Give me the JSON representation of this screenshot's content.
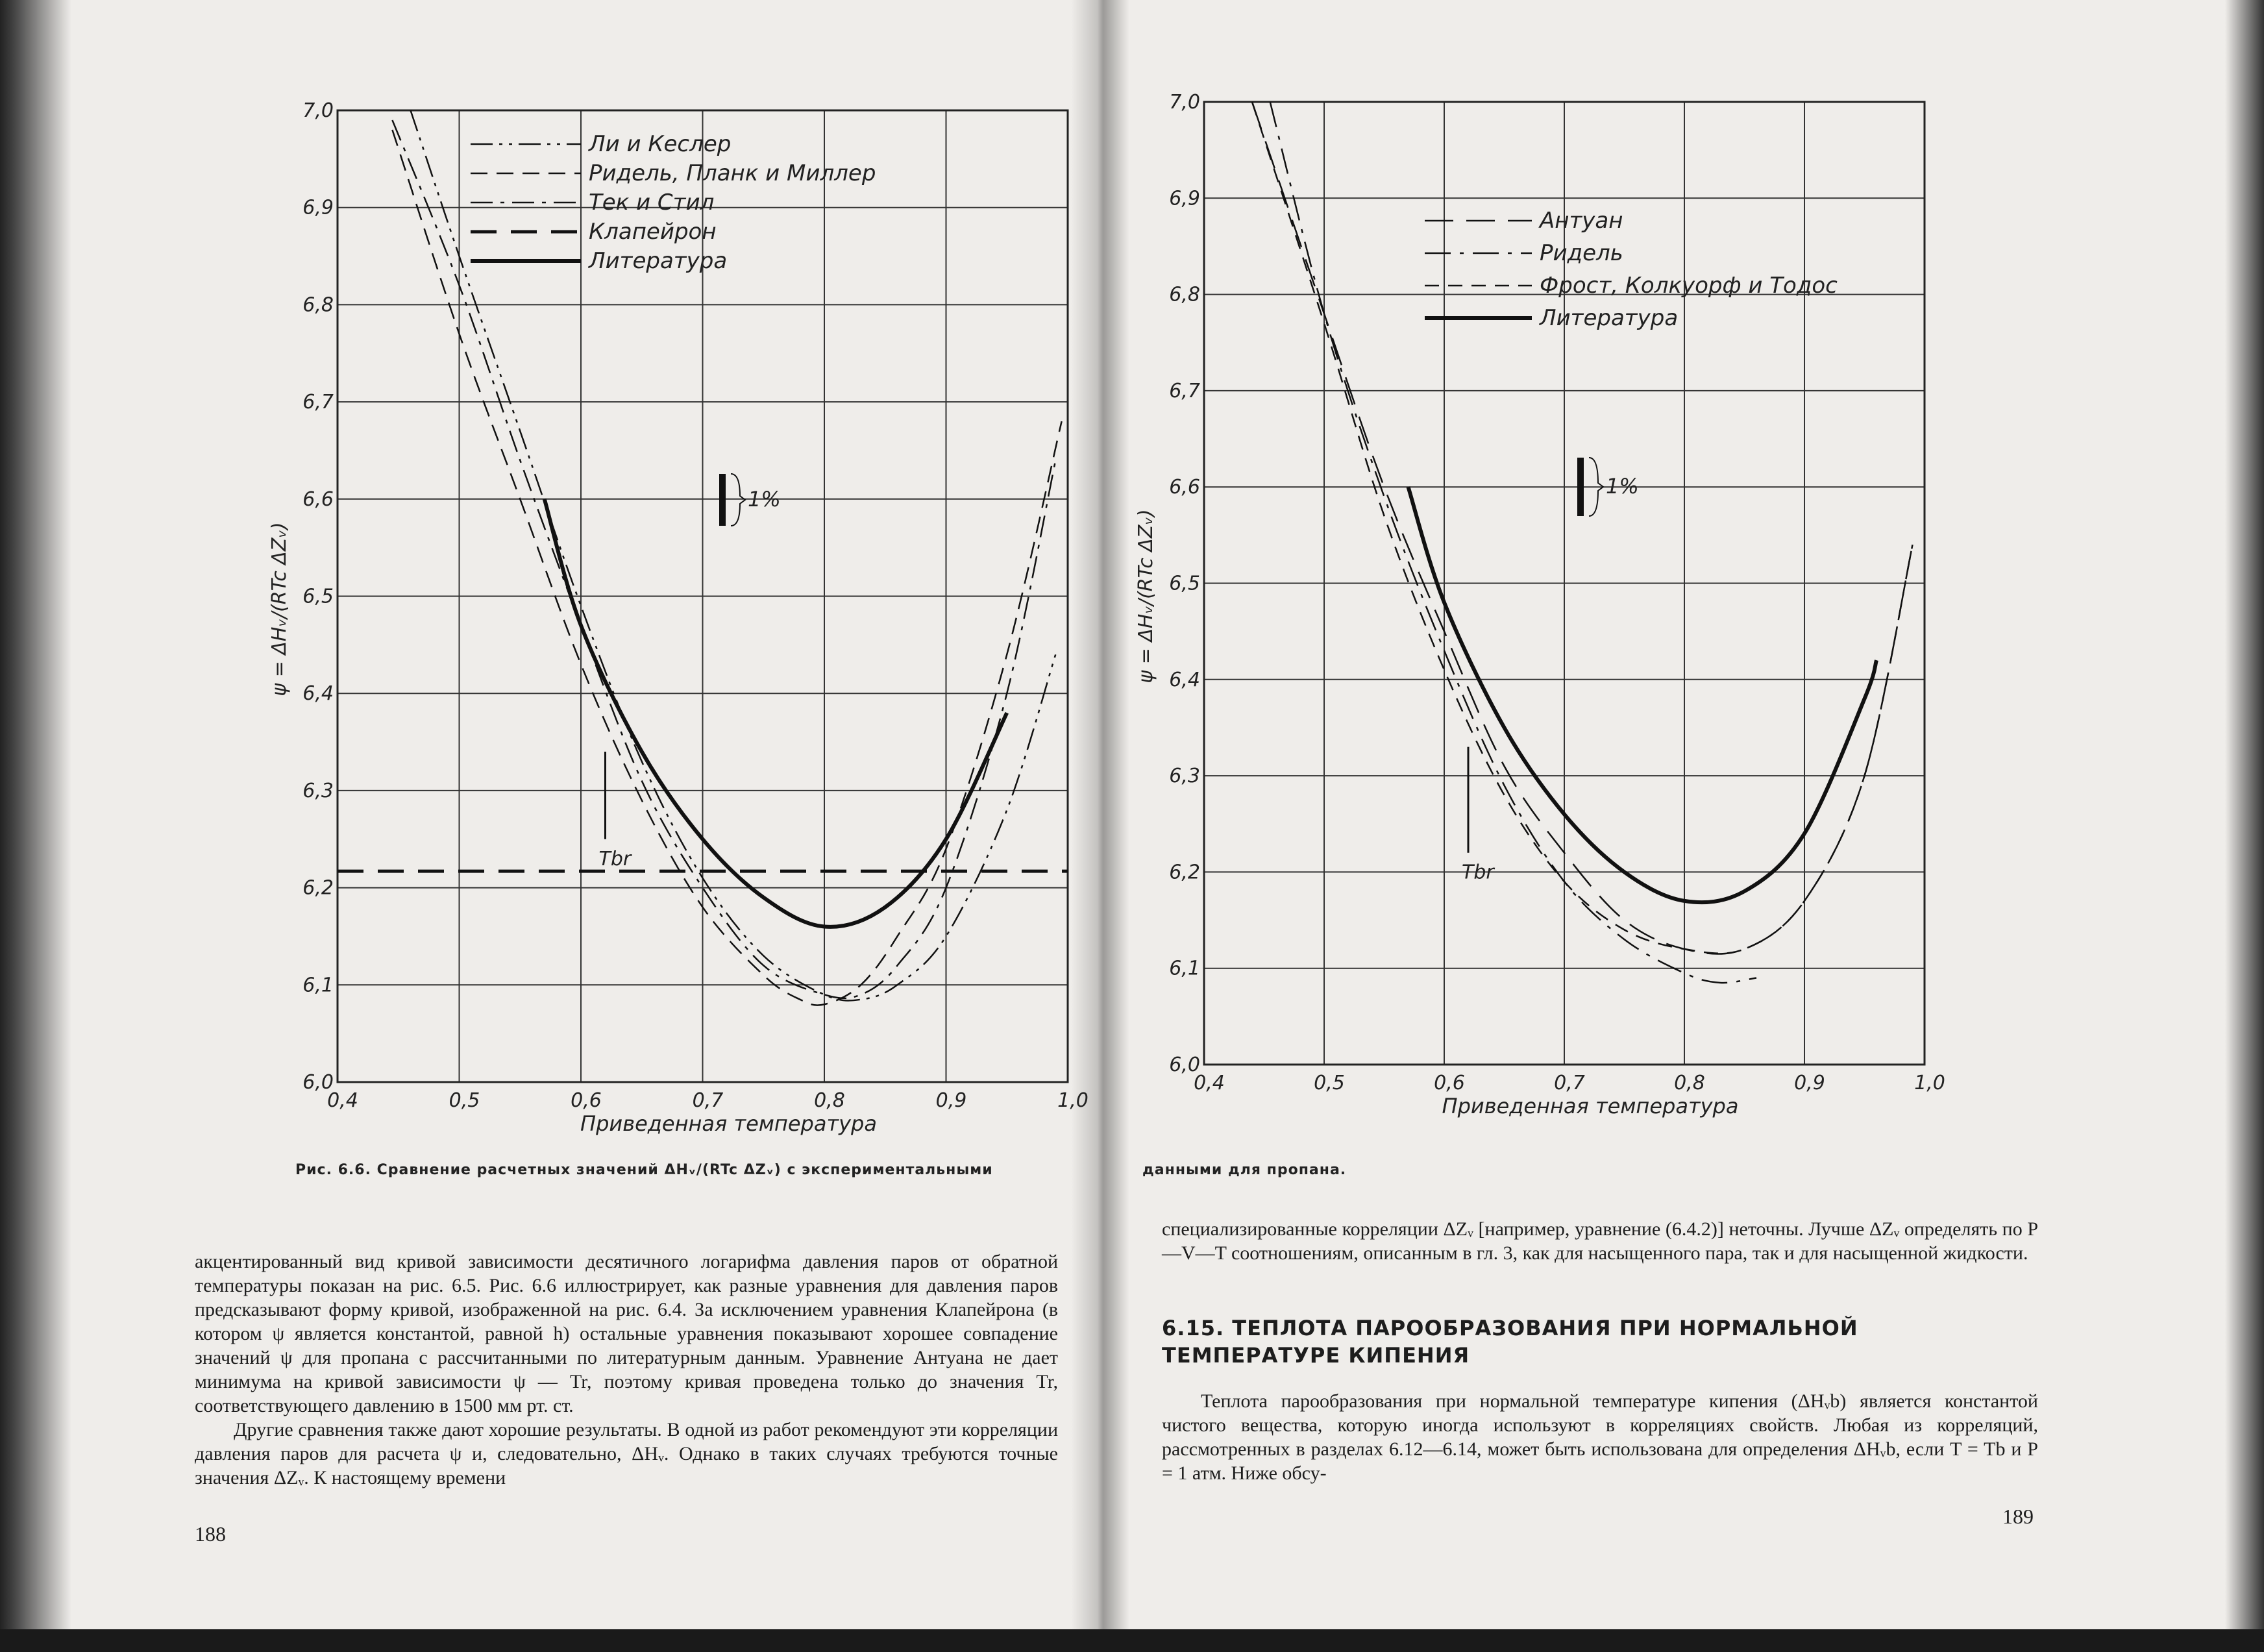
{
  "left_chart": {
    "y_axis_label": "ψ = ΔHᵥ/(RTc ΔZᵥ)",
    "x_axis_label": "Приведенная температура",
    "x_ticks": [
      "0,4",
      "0,5",
      "0,6",
      "0,7",
      "0,8",
      "0,9",
      "1,0"
    ],
    "y_ticks": [
      "6,0",
      "6,1",
      "6,2",
      "6,3",
      "6,4",
      "6,5",
      "6,6",
      "6,7",
      "6,8",
      "6,9",
      "7,0"
    ],
    "legend": [
      "Ли и Кеслер",
      "Ридель, Планк и Миллер",
      "Тек и Стил",
      "Клапейрон",
      "Литература"
    ],
    "tb_label": "Tbr",
    "percent_label": "1%"
  },
  "right_chart": {
    "y_axis_label": "ψ = ΔHᵥ/(RTc ΔZᵥ)",
    "x_axis_label": "Приведенная температура",
    "x_ticks": [
      "0,4",
      "0,5",
      "0,6",
      "0,7",
      "0,8",
      "0,9",
      "1,0"
    ],
    "y_ticks": [
      "6,0",
      "6,1",
      "6,2",
      "6,3",
      "6,4",
      "6,5",
      "6,6",
      "6,7",
      "6,8",
      "6,9",
      "7,0"
    ],
    "legend": [
      "Антуан",
      "Ридель",
      "Фрост, Колкуорф и Тодос",
      "Литература"
    ],
    "tb_label": "Tbr",
    "percent_label": "1%"
  },
  "chart_data": [
    {
      "type": "line",
      "xlabel": "Приведенная температура",
      "ylabel": "ψ = ΔHᵥ/(RTc ΔZᵥ)",
      "xlim": [
        0.4,
        1.0
      ],
      "ylim": [
        6.0,
        7.0
      ],
      "series": [
        {
          "name": "Ли и Кеслер",
          "x": [
            0.46,
            0.5,
            0.55,
            0.6,
            0.65,
            0.7,
            0.75,
            0.8,
            0.83,
            0.86,
            0.9,
            0.95,
            0.99
          ],
          "y": [
            7.0,
            6.85,
            6.67,
            6.49,
            6.33,
            6.21,
            6.13,
            6.09,
            6.085,
            6.1,
            6.15,
            6.28,
            6.44
          ]
        },
        {
          "name": "Ридель, Планк и Миллер",
          "x": [
            0.445,
            0.5,
            0.55,
            0.6,
            0.65,
            0.7,
            0.75,
            0.78,
            0.8,
            0.83,
            0.86,
            0.9,
            0.95,
            0.995
          ],
          "y": [
            6.98,
            6.77,
            6.6,
            6.43,
            6.29,
            6.18,
            6.11,
            6.085,
            6.08,
            6.1,
            6.15,
            6.24,
            6.44,
            6.68
          ]
        },
        {
          "name": "Тек и Стил",
          "x": [
            0.445,
            0.5,
            0.55,
            0.6,
            0.65,
            0.7,
            0.75,
            0.8,
            0.83,
            0.86,
            0.9,
            0.95,
            0.99
          ],
          "y": [
            6.99,
            6.82,
            6.64,
            6.47,
            6.31,
            6.2,
            6.12,
            6.09,
            6.09,
            6.12,
            6.2,
            6.4,
            6.64
          ]
        },
        {
          "name": "Клапейрон",
          "x": [
            0.4,
            1.0
          ],
          "y": [
            6.217,
            6.217
          ]
        },
        {
          "name": "Литература",
          "x": [
            0.57,
            0.6,
            0.65,
            0.7,
            0.75,
            0.8,
            0.85,
            0.9,
            0.95
          ],
          "y": [
            6.6,
            6.47,
            6.34,
            6.25,
            6.19,
            6.16,
            6.18,
            6.25,
            6.38
          ]
        }
      ]
    },
    {
      "type": "line",
      "xlabel": "Приведенная температура",
      "ylabel": "ψ = ΔHᵥ/(RTc ΔZᵥ)",
      "xlim": [
        0.4,
        1.0
      ],
      "ylim": [
        6.0,
        7.0
      ],
      "series": [
        {
          "name": "Антуан",
          "x": [
            0.44,
            0.5,
            0.55,
            0.6,
            0.65,
            0.7,
            0.75,
            0.8,
            0.85,
            0.9,
            0.95,
            0.99
          ],
          "y": [
            7.0,
            6.78,
            6.6,
            6.45,
            6.31,
            6.22,
            6.15,
            6.12,
            6.12,
            6.17,
            6.3,
            6.54
          ]
        },
        {
          "name": "Ридель",
          "x": [
            0.455,
            0.5,
            0.55,
            0.6,
            0.65,
            0.7,
            0.75,
            0.8,
            0.83,
            0.86
          ],
          "y": [
            7.0,
            6.78,
            6.59,
            6.43,
            6.29,
            6.19,
            6.13,
            6.095,
            6.085,
            6.09
          ]
        },
        {
          "name": "Фрост, Колкуорф и Тодос",
          "x": [
            0.44,
            0.5,
            0.55,
            0.6,
            0.65,
            0.7,
            0.75,
            0.8,
            0.85,
            0.9,
            0.95,
            0.99
          ],
          "y": [
            7.0,
            6.77,
            6.57,
            6.41,
            6.28,
            6.19,
            6.14,
            6.12,
            6.12,
            6.17,
            6.3,
            6.54
          ]
        },
        {
          "name": "Литература",
          "x": [
            0.57,
            0.6,
            0.65,
            0.7,
            0.75,
            0.8,
            0.85,
            0.9,
            0.95,
            0.96
          ],
          "y": [
            6.6,
            6.48,
            6.35,
            6.26,
            6.2,
            6.17,
            6.18,
            6.24,
            6.38,
            6.42
          ]
        }
      ]
    }
  ],
  "caption": {
    "left": "Рис. 6.6. Сравнение расчетных значений ΔHᵥ/(RTc ΔZᵥ) с экспериментальными",
    "right": "данными для пропана."
  },
  "left_page": {
    "p1": "акцентированный вид кривой зависимости десятичного логарифма давления паров от обратной температуры показан на рис. 6.5. Рис. 6.6 иллюстрирует, как разные уравнения для давления паров предсказывают форму кривой, изображенной на рис. 6.4. За исключением уравнения Клапейрона (в котором ψ является константой, равной h) остальные уравнения показывают хорошее совпадение значений ψ для пропана с рассчитанными по литературным данным. Уравнение Антуана не дает минимума на кривой зависимости ψ — Tr, поэтому кривая проведена только до значения Tr, соответствующего давлению в 1500 мм рт. ст.",
    "p2": "Другие сравнения также дают хорошие результаты. В одной из работ рекомендуют эти корреляции давления паров для расчета ψ и, следовательно, ΔHᵥ. Однако в таких случаях требуются точные значения ΔZᵥ. К настоящему времени",
    "page_number": "188"
  },
  "right_page": {
    "p1": "специализированные корреляции ΔZᵥ [например, уравнение (6.4.2)] неточны. Лучше ΔZᵥ определять по P—V—T соотношениям, описанным в гл. 3, как для насыщенного пара, так и для насыщенной жидкости.",
    "heading": "6.15. ТЕПЛОТА ПАРООБРАЗОВАНИЯ ПРИ НОРМАЛЬНОЙ ТЕМПЕРАТУРЕ КИПЕНИЯ",
    "p2": "Теплота парообразования при нормальной температуре кипения (ΔHᵥb) является константой чистого вещества, которую иногда используют в корреляциях свойств. Любая из корреляций, рассмотренных в разделах 6.12—6.14, может быть использована для определения ΔHᵥb, если T = Tb и P = 1 атм. Ниже обсу-",
    "page_number": "189"
  }
}
